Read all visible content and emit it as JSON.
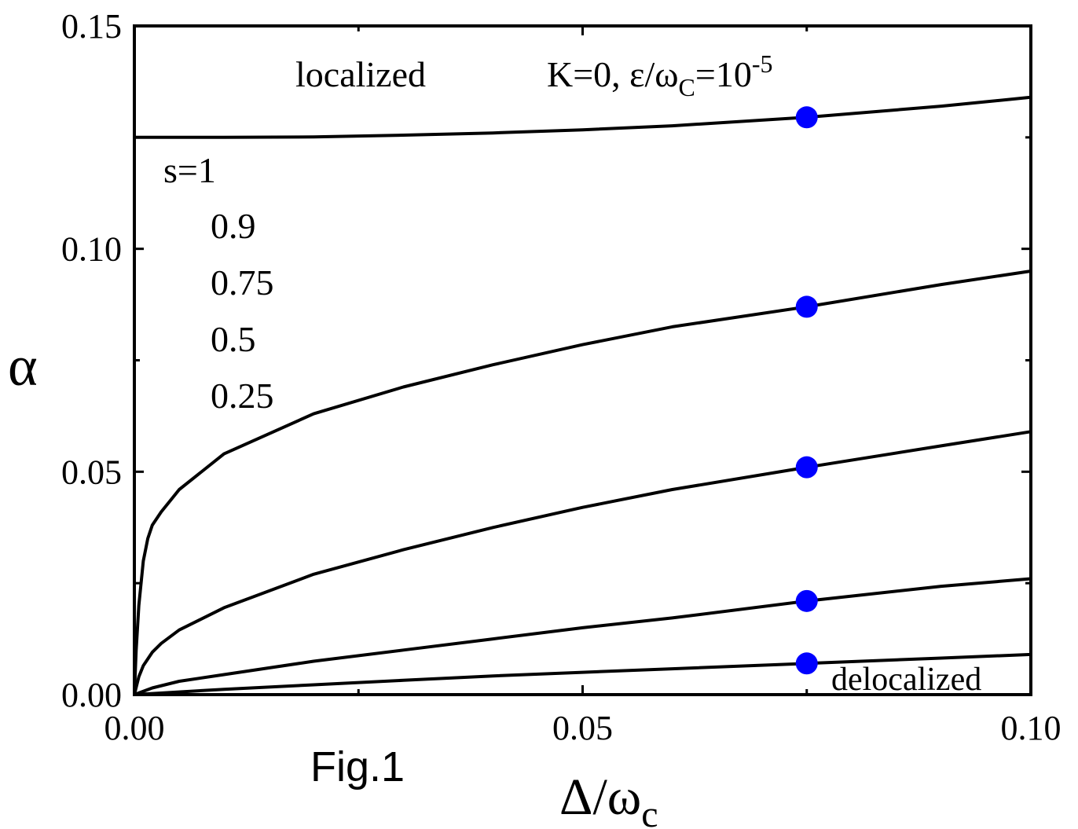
{
  "chart_data": {
    "type": "line",
    "title": "",
    "xlabel": "Δ/ω",
    "xlabel_sub": "c",
    "ylabel": "α",
    "xlim": [
      0,
      0.1
    ],
    "ylim": [
      0,
      0.15
    ],
    "x_ticks": [
      "0.00",
      "0.05",
      "0.10"
    ],
    "y_ticks": [
      "0.00",
      "0.05",
      "0.10",
      "0.15"
    ],
    "grid": false,
    "line_color": "#000000",
    "marker_color": "#0000ff",
    "series": [
      {
        "x": [
          0,
          0.005,
          0.01,
          0.02,
          0.03,
          0.04,
          0.05,
          0.06,
          0.075,
          0.09,
          0.1
        ],
        "y": [
          0.125,
          0.125,
          0.125,
          0.1251,
          0.1255,
          0.126,
          0.1267,
          0.1276,
          0.1295,
          0.132,
          0.134
        ]
      },
      {
        "x": [
          0,
          0.0002,
          0.0005,
          0.001,
          0.0015,
          0.002,
          0.003,
          0.005,
          0.01,
          0.02,
          0.03,
          0.04,
          0.05,
          0.06,
          0.075,
          0.09,
          0.1
        ],
        "y": [
          0,
          0.01,
          0.02,
          0.03,
          0.035,
          0.038,
          0.041,
          0.046,
          0.054,
          0.063,
          0.069,
          0.074,
          0.0785,
          0.0825,
          0.087,
          0.092,
          0.095
        ]
      },
      {
        "x": [
          0,
          0.0005,
          0.001,
          0.002,
          0.003,
          0.005,
          0.01,
          0.02,
          0.03,
          0.04,
          0.05,
          0.06,
          0.075,
          0.09,
          0.1
        ],
        "y": [
          0,
          0.004,
          0.0065,
          0.0095,
          0.0115,
          0.0145,
          0.0195,
          0.027,
          0.0325,
          0.0375,
          0.042,
          0.046,
          0.051,
          0.0558,
          0.059
        ]
      },
      {
        "x": [
          0,
          0.002,
          0.005,
          0.01,
          0.02,
          0.03,
          0.04,
          0.05,
          0.06,
          0.075,
          0.09,
          0.1
        ],
        "y": [
          0,
          0.0015,
          0.003,
          0.0045,
          0.0075,
          0.01,
          0.0125,
          0.015,
          0.0172,
          0.021,
          0.0243,
          0.026
        ]
      },
      {
        "x": [
          0,
          0.01,
          0.02,
          0.03,
          0.04,
          0.05,
          0.06,
          0.075,
          0.09,
          0.1
        ],
        "y": [
          0,
          0.0012,
          0.0022,
          0.0032,
          0.0042,
          0.005,
          0.0058,
          0.007,
          0.0082,
          0.009
        ]
      }
    ],
    "markers": [
      {
        "x": 0.075,
        "y": 0.1295
      },
      {
        "x": 0.075,
        "y": 0.087
      },
      {
        "x": 0.075,
        "y": 0.051
      },
      {
        "x": 0.075,
        "y": 0.021
      },
      {
        "x": 0.075,
        "y": 0.007
      }
    ],
    "annotations": {
      "localized": "localized",
      "params_prefix": "K=0, ε/ω",
      "params_sub": "C",
      "params_mid": "=10",
      "params_sup": "-5",
      "s_labels": [
        "s=1",
        "0.9",
        "0.75",
        "0.5",
        "0.25"
      ],
      "delocalized": "delocalized",
      "fig_label": "Fig.1"
    }
  }
}
